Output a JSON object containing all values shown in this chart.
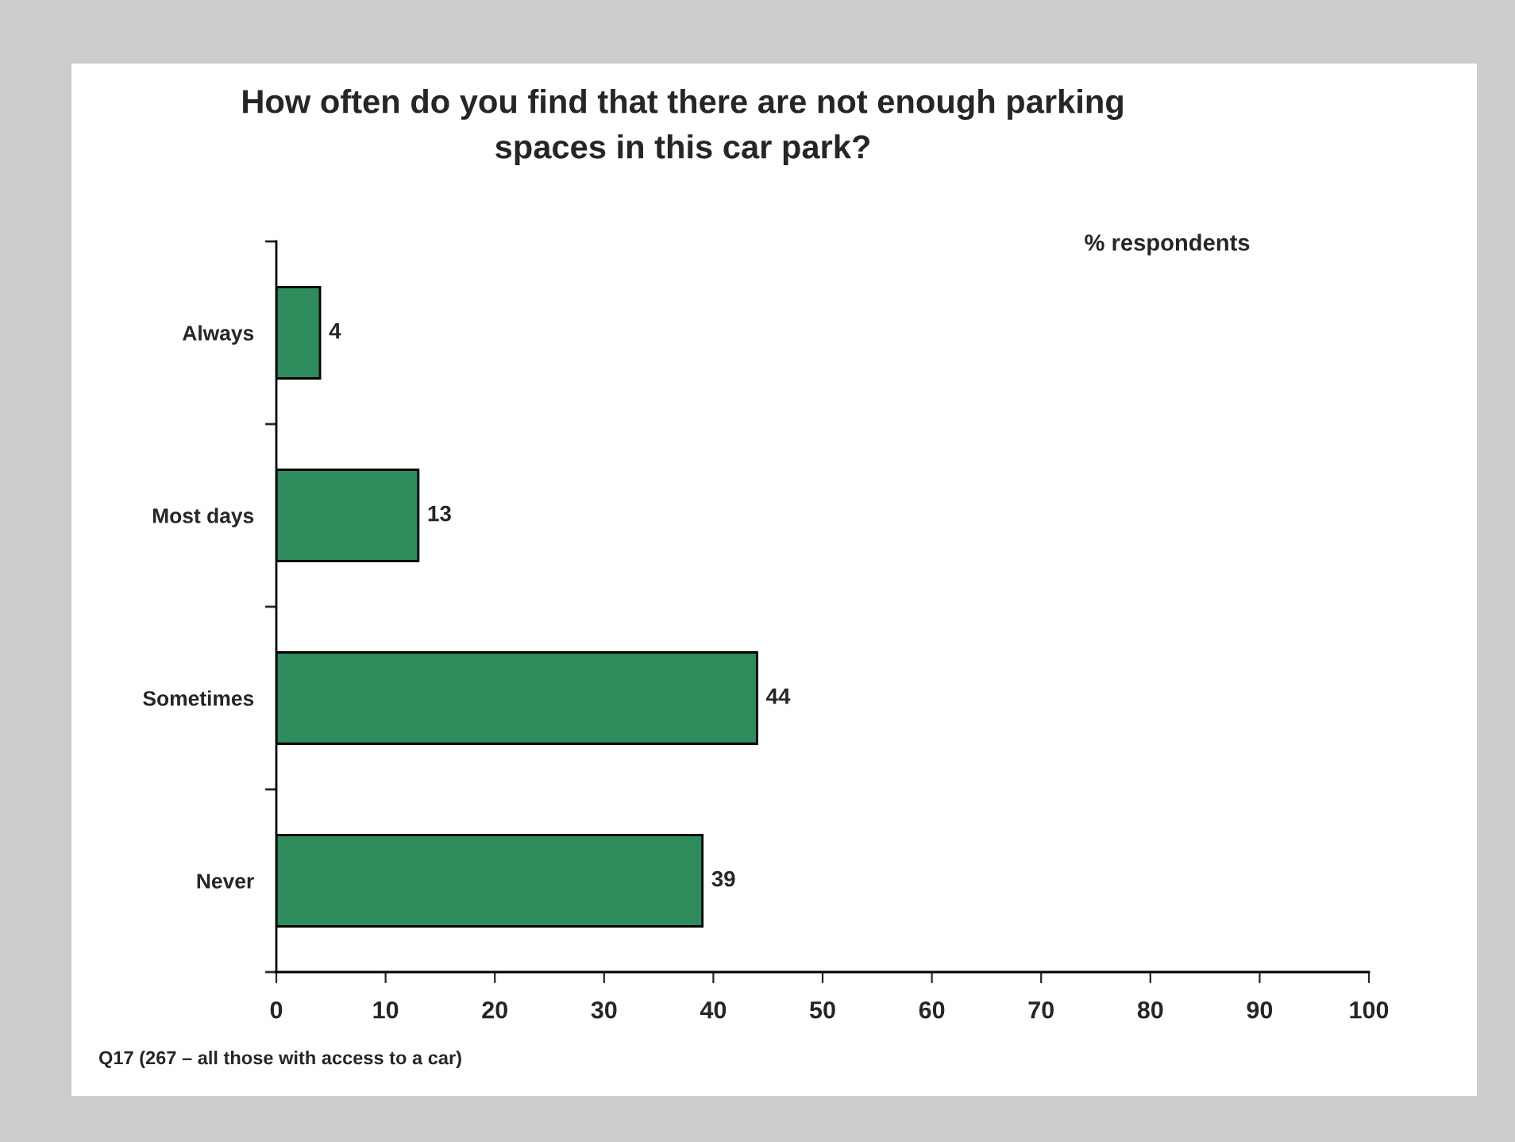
{
  "chart_data": {
    "type": "bar",
    "orientation": "horizontal",
    "title": "How often do you find that there are not enough parking spaces in this car park?",
    "categories": [
      "Always",
      "Most days",
      "Sometimes",
      "Never"
    ],
    "values": [
      4,
      13,
      44,
      39
    ],
    "color": "#2e8b5c",
    "xlim": [
      0,
      100
    ],
    "xticks": [
      0,
      10,
      20,
      30,
      40,
      50,
      60,
      70,
      80,
      90,
      100
    ],
    "data_labels": true,
    "grid": false,
    "legend": false,
    "annotations": [
      "% respondents",
      "Q17 (267 – all those with access to a car)"
    ]
  }
}
